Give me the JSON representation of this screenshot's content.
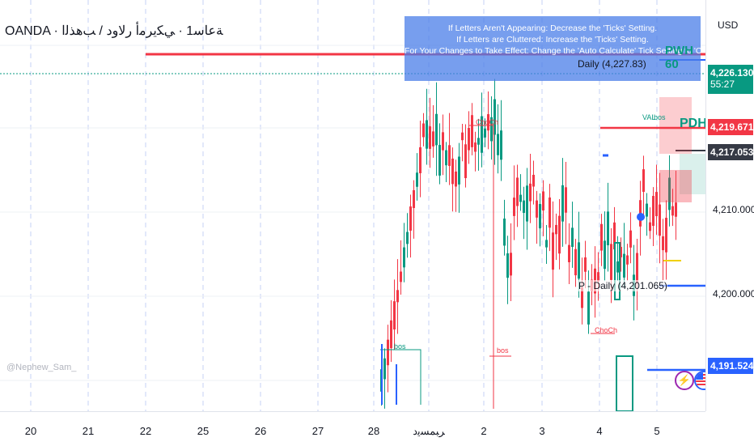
{
  "header": {
    "title": "OANDA · ﺔﻋﺎﺳ1 · ﻲﻜﻳﺮﻣﺃ ﺭﻻﻭﺩ / ﺐﻫﺬﻟﺍ",
    "currency": "USD"
  },
  "banner": {
    "line1": "If Letters Aren't Appearing: Decrease the 'Ticks' Setting.",
    "line2": "If Letters are Cluttered: Increase the 'Ticks' Setting.",
    "line3": "For Your Changes to Take Effect: Change the 'Auto Calculate' Tick Setting to 'Custom'"
  },
  "price_axis": {
    "labels": [
      "4,210.000",
      "4,200.000"
    ],
    "tags": [
      {
        "value": "4,226.130",
        "sub": "55:27",
        "color": "#089981"
      },
      {
        "value": "4,219.671",
        "color": "#f23645"
      },
      {
        "value": "4,217.053",
        "color": "#363a45"
      },
      {
        "value": "4,191.524",
        "color": "#2962ff"
      }
    ]
  },
  "time_axis": {
    "labels": [
      "20",
      "21",
      "22",
      "25",
      "26",
      "27",
      "28",
      "ﺮﺒﻤﺴﻳﺩ",
      "2",
      "3",
      "4",
      "5"
    ]
  },
  "annotations": {
    "p_daily": "P - Daily (4,201.065)",
    "upper_daily": "Daily (4,227.83)",
    "pdh": "PDH",
    "pwh": "PWH 60",
    "bos": "bos",
    "choch": "ChoCh",
    "val": "VAL",
    "watermark": "@Nephew_Sam_"
  },
  "colors": {
    "bull": "#089981",
    "bear": "#f23645",
    "accent": "#2962ff"
  }
}
